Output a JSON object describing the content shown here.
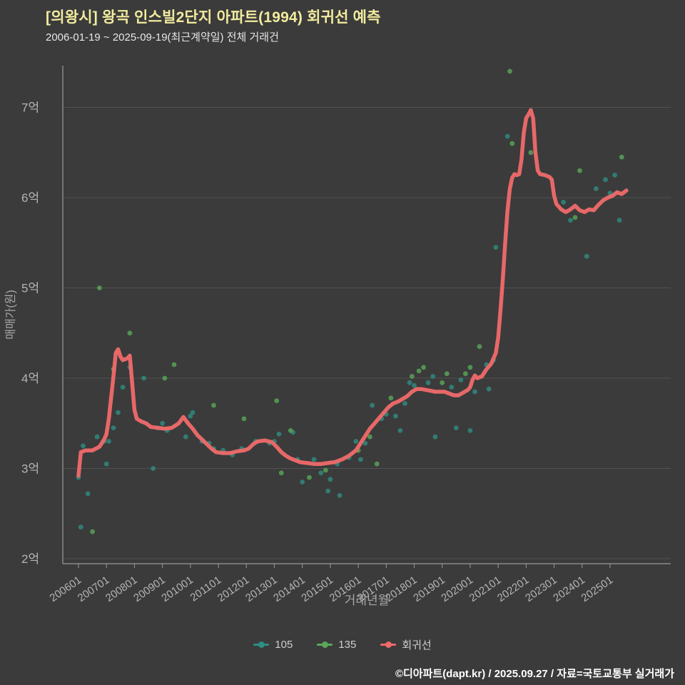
{
  "header": {
    "title": "[의왕시] 왕곡 인스빌2단지 아파트(1994) 회귀선 예측",
    "subtitle": "2006-01-19 ~ 2025-09-19(최근계약일) 전체 거래건"
  },
  "footer": {
    "credit": "©디아파트(dapt.kr) / 2025.09.27 / 자료=국토교통부 실거래가"
  },
  "colors": {
    "background": "#3b3b3b",
    "title": "#f2eb9e",
    "series_105": "#2f8d82",
    "series_135": "#5aa85a",
    "regression": "#f06a6a",
    "grid": "#515151",
    "axis": "#9a9a9a"
  },
  "legend": {
    "items": [
      {
        "label": "105",
        "color": "#2f8d82"
      },
      {
        "label": "135",
        "color": "#5aa85a"
      },
      {
        "label": "회귀선",
        "color": "#f06a6a"
      }
    ]
  },
  "chart_data": {
    "type": "scatter",
    "title": "[의왕시] 왕곡 인스빌2단지 아파트(1994) 회귀선 예측",
    "subtitle": "2006-01-19 ~ 2025-09-19(최근계약일) 전체 거래건",
    "xlabel": "거래년월",
    "ylabel": "매매가(원)",
    "y_unit": "억",
    "ylim": [
      1.85,
      7.6
    ],
    "grid": true,
    "legend_position": "bottom",
    "x_ticks": [
      "200601",
      "200701",
      "200801",
      "200901",
      "201001",
      "201101",
      "201201",
      "201301",
      "201401",
      "201501",
      "201601",
      "201701",
      "201801",
      "201901",
      "202001",
      "202101",
      "202201",
      "202301",
      "202401",
      "202501"
    ],
    "y_ticks": [
      {
        "value": 2,
        "label": "2억"
      },
      {
        "value": 3,
        "label": "3억"
      },
      {
        "value": 4,
        "label": "4억"
      },
      {
        "value": 5,
        "label": "5억"
      },
      {
        "value": 6,
        "label": "6억"
      },
      {
        "value": 7,
        "label": "7억"
      }
    ],
    "series": [
      {
        "name": "105",
        "type": "scatter",
        "color": "#2f8d82",
        "points": [
          [
            "200601",
            2.9
          ],
          [
            "200602",
            2.35
          ],
          [
            "200603",
            3.25
          ],
          [
            "200605",
            2.72
          ],
          [
            "200609",
            3.35
          ],
          [
            "200612",
            3.3
          ],
          [
            "200701",
            3.05
          ],
          [
            "200702",
            3.3
          ],
          [
            "200704",
            3.45
          ],
          [
            "200706",
            3.62
          ],
          [
            "200708",
            3.9
          ],
          [
            "200711",
            4.12
          ],
          [
            "200805",
            4.0
          ],
          [
            "200809",
            3.0
          ],
          [
            "200811",
            3.45
          ],
          [
            "200901",
            3.5
          ],
          [
            "200903",
            3.42
          ],
          [
            "200911",
            3.35
          ],
          [
            "201001",
            3.58
          ],
          [
            "201002",
            3.62
          ],
          [
            "201006",
            3.3
          ],
          [
            "201009",
            3.28
          ],
          [
            "201011",
            3.22
          ],
          [
            "201103",
            3.2
          ],
          [
            "201107",
            3.15
          ],
          [
            "201111",
            3.22
          ],
          [
            "201205",
            3.3
          ],
          [
            "201211",
            3.28
          ],
          [
            "201301",
            3.3
          ],
          [
            "201303",
            3.38
          ],
          [
            "201309",
            3.4
          ],
          [
            "201311",
            3.1
          ],
          [
            "201401",
            2.85
          ],
          [
            "201406",
            3.1
          ],
          [
            "201409",
            2.95
          ],
          [
            "201412",
            2.75
          ],
          [
            "201501",
            2.88
          ],
          [
            "201504",
            3.05
          ],
          [
            "201505",
            2.7
          ],
          [
            "201509",
            3.12
          ],
          [
            "201512",
            3.3
          ],
          [
            "201602",
            3.1
          ],
          [
            "201604",
            3.28
          ],
          [
            "201607",
            3.7
          ],
          [
            "201611",
            3.55
          ],
          [
            "201701",
            3.6
          ],
          [
            "201705",
            3.58
          ],
          [
            "201707",
            3.42
          ],
          [
            "201709",
            3.72
          ],
          [
            "201711",
            3.95
          ],
          [
            "201801",
            3.92
          ],
          [
            "201807",
            3.95
          ],
          [
            "201809",
            4.02
          ],
          [
            "201810",
            3.35
          ],
          [
            "201905",
            3.9
          ],
          [
            "201907",
            3.45
          ],
          [
            "201909",
            3.98
          ],
          [
            "202001",
            3.42
          ],
          [
            "202003",
            3.85
          ],
          [
            "202009",
            3.88
          ],
          [
            "202008",
            4.15
          ],
          [
            "202011",
            4.2
          ],
          [
            "202012",
            5.45
          ],
          [
            "202105",
            6.68
          ],
          [
            "202305",
            5.95
          ],
          [
            "202308",
            5.75
          ],
          [
            "202403",
            5.35
          ],
          [
            "202407",
            6.1
          ],
          [
            "202411",
            6.2
          ],
          [
            "202501",
            6.05
          ],
          [
            "202503",
            6.25
          ],
          [
            "202505",
            5.75
          ]
        ]
      },
      {
        "name": "135",
        "type": "scatter",
        "color": "#5aa85a",
        "points": [
          [
            "200607",
            2.3
          ],
          [
            "200610",
            5.0
          ],
          [
            "200704",
            4.1
          ],
          [
            "200711",
            4.5
          ],
          [
            "200902",
            4.0
          ],
          [
            "200906",
            4.15
          ],
          [
            "201011",
            3.7
          ],
          [
            "201112",
            3.55
          ],
          [
            "201302",
            3.75
          ],
          [
            "201304",
            2.95
          ],
          [
            "201308",
            3.42
          ],
          [
            "201404",
            2.9
          ],
          [
            "201411",
            2.98
          ],
          [
            "201601",
            3.2
          ],
          [
            "201606",
            3.35
          ],
          [
            "201609",
            3.05
          ],
          [
            "201703",
            3.78
          ],
          [
            "201712",
            4.02
          ],
          [
            "201803",
            4.08
          ],
          [
            "201805",
            4.12
          ],
          [
            "201901",
            3.95
          ],
          [
            "201903",
            4.05
          ],
          [
            "201911",
            4.05
          ],
          [
            "202001",
            4.12
          ],
          [
            "202005",
            4.35
          ],
          [
            "202106",
            7.4
          ],
          [
            "202107",
            6.6
          ],
          [
            "202203",
            6.5
          ],
          [
            "202310",
            5.78
          ],
          [
            "202312",
            6.3
          ],
          [
            "202506",
            6.45
          ]
        ]
      },
      {
        "name": "회귀선",
        "type": "line",
        "color": "#f06a6a",
        "points": [
          [
            "200601",
            2.92
          ],
          [
            "200602",
            3.18
          ],
          [
            "200604",
            3.2
          ],
          [
            "200607",
            3.2
          ],
          [
            "200610",
            3.24
          ],
          [
            "200612",
            3.32
          ],
          [
            "200701",
            3.38
          ],
          [
            "200702",
            3.55
          ],
          [
            "200703",
            3.78
          ],
          [
            "200704",
            4.02
          ],
          [
            "200705",
            4.28
          ],
          [
            "200706",
            4.32
          ],
          [
            "200707",
            4.24
          ],
          [
            "200708",
            4.2
          ],
          [
            "200710",
            4.22
          ],
          [
            "200711",
            4.25
          ],
          [
            "200712",
            3.95
          ],
          [
            "200801",
            3.65
          ],
          [
            "200802",
            3.55
          ],
          [
            "200804",
            3.52
          ],
          [
            "200806",
            3.5
          ],
          [
            "200808",
            3.46
          ],
          [
            "200811",
            3.45
          ],
          [
            "200902",
            3.44
          ],
          [
            "200905",
            3.45
          ],
          [
            "200908",
            3.5
          ],
          [
            "200910",
            3.57
          ],
          [
            "200912",
            3.5
          ],
          [
            "201002",
            3.44
          ],
          [
            "201004",
            3.37
          ],
          [
            "201006",
            3.32
          ],
          [
            "201008",
            3.27
          ],
          [
            "201010",
            3.22
          ],
          [
            "201012",
            3.18
          ],
          [
            "201103",
            3.17
          ],
          [
            "201106",
            3.17
          ],
          [
            "201109",
            3.19
          ],
          [
            "201112",
            3.2
          ],
          [
            "201202",
            3.22
          ],
          [
            "201204",
            3.27
          ],
          [
            "201206",
            3.3
          ],
          [
            "201209",
            3.31
          ],
          [
            "201212",
            3.29
          ],
          [
            "201302",
            3.24
          ],
          [
            "201304",
            3.18
          ],
          [
            "201306",
            3.14
          ],
          [
            "201308",
            3.11
          ],
          [
            "201310",
            3.09
          ],
          [
            "201312",
            3.07
          ],
          [
            "201403",
            3.06
          ],
          [
            "201406",
            3.05
          ],
          [
            "201409",
            3.05
          ],
          [
            "201412",
            3.06
          ],
          [
            "201503",
            3.07
          ],
          [
            "201506",
            3.1
          ],
          [
            "201509",
            3.14
          ],
          [
            "201512",
            3.2
          ],
          [
            "201602",
            3.28
          ],
          [
            "201604",
            3.36
          ],
          [
            "201606",
            3.44
          ],
          [
            "201608",
            3.5
          ],
          [
            "201610",
            3.56
          ],
          [
            "201612",
            3.62
          ],
          [
            "201702",
            3.68
          ],
          [
            "201704",
            3.72
          ],
          [
            "201706",
            3.74
          ],
          [
            "201708",
            3.77
          ],
          [
            "201710",
            3.8
          ],
          [
            "201712",
            3.85
          ],
          [
            "201802",
            3.88
          ],
          [
            "201804",
            3.88
          ],
          [
            "201806",
            3.87
          ],
          [
            "201808",
            3.86
          ],
          [
            "201810",
            3.85
          ],
          [
            "201812",
            3.85
          ],
          [
            "201902",
            3.85
          ],
          [
            "201904",
            3.83
          ],
          [
            "201906",
            3.81
          ],
          [
            "201908",
            3.81
          ],
          [
            "201910",
            3.84
          ],
          [
            "201912",
            3.87
          ],
          [
            "202001",
            3.9
          ],
          [
            "202002",
            3.98
          ],
          [
            "202003",
            4.03
          ],
          [
            "202004",
            4.0
          ],
          [
            "202006",
            4.02
          ],
          [
            "202008",
            4.1
          ],
          [
            "202010",
            4.16
          ],
          [
            "202012",
            4.28
          ],
          [
            "202101",
            4.45
          ],
          [
            "202102",
            4.75
          ],
          [
            "202103",
            5.1
          ],
          [
            "202104",
            5.5
          ],
          [
            "202105",
            5.85
          ],
          [
            "202106",
            6.1
          ],
          [
            "202107",
            6.22
          ],
          [
            "202108",
            6.26
          ],
          [
            "202109",
            6.25
          ],
          [
            "202110",
            6.26
          ],
          [
            "202111",
            6.42
          ],
          [
            "202112",
            6.72
          ],
          [
            "202201",
            6.88
          ],
          [
            "202202",
            6.92
          ],
          [
            "202203",
            6.97
          ],
          [
            "202204",
            6.88
          ],
          [
            "202205",
            6.5
          ],
          [
            "202206",
            6.3
          ],
          [
            "202207",
            6.26
          ],
          [
            "202209",
            6.25
          ],
          [
            "202211",
            6.23
          ],
          [
            "202212",
            6.2
          ],
          [
            "202301",
            6.02
          ],
          [
            "202302",
            5.93
          ],
          [
            "202304",
            5.87
          ],
          [
            "202306",
            5.84
          ],
          [
            "202308",
            5.87
          ],
          [
            "202310",
            5.91
          ],
          [
            "202312",
            5.86
          ],
          [
            "202402",
            5.84
          ],
          [
            "202404",
            5.87
          ],
          [
            "202406",
            5.86
          ],
          [
            "202408",
            5.92
          ],
          [
            "202410",
            5.97
          ],
          [
            "202412",
            6.0
          ],
          [
            "202502",
            6.02
          ],
          [
            "202504",
            6.06
          ],
          [
            "202506",
            6.04
          ],
          [
            "202508",
            6.08
          ]
        ]
      }
    ]
  }
}
